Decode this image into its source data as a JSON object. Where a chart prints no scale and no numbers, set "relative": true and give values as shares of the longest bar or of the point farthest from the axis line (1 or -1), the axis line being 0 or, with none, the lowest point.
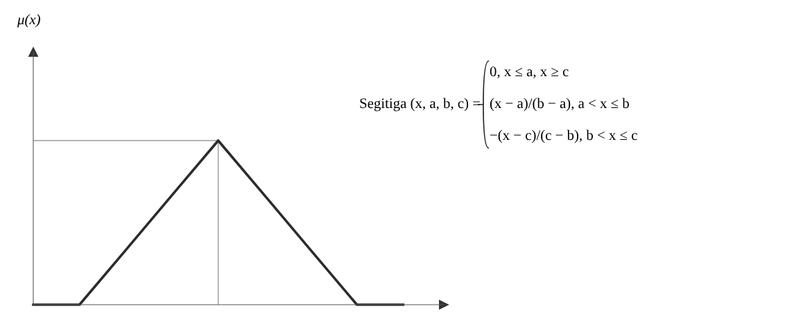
{
  "chart_data": {
    "type": "line",
    "relative": true,
    "categories": [
      null,
      null,
      null,
      null,
      null,
      null,
      null,
      null,
      null
    ],
    "series": [
      {
        "color": "#2b2b2b",
        "values": [
          0,
          0,
          0.333,
          0.667,
          1,
          0.667,
          0.333,
          0,
          0
        ]
      }
    ],
    "ref_lines": [
      {
        "axis": "y",
        "value": 1,
        "color": "#9a9a9a"
      }
    ],
    "legend": false,
    "marker": "none",
    "line_style": "solid",
    "annotations": [
      "μ(x)",
      "Segitiga (x, a, b, c) =",
      "0, x ≤ a, x ≥ c",
      "(x − a)/(b − a), a < x ≤ b",
      "−(x − c)/(c − b), b < x ≤ c"
    ]
  }
}
